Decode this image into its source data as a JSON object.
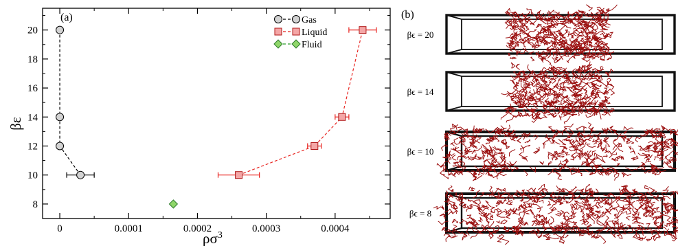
{
  "chart_data": [
    {
      "type": "scatter",
      "panel_label": "(a)",
      "xlabel": "ρσ",
      "xlabel_superscript": "3",
      "ylabel": "βε",
      "xlim": [
        -2.5e-05,
        0.00048
      ],
      "ylim": [
        7,
        21.5
      ],
      "xticks": [
        0,
        0.0001,
        0.0002,
        0.0003,
        0.0004
      ],
      "xtick_labels": [
        "0",
        "0.0001",
        "0.0002",
        "0.0003",
        "0.0004"
      ],
      "yticks": [
        8,
        10,
        12,
        14,
        16,
        18,
        20
      ],
      "ytick_labels": [
        "8",
        "10",
        "12",
        "14",
        "16",
        "18",
        "20"
      ],
      "grid": false,
      "legend_position": "top-right",
      "series": [
        {
          "name": "Gas",
          "marker": "circle",
          "color": "#d3d3d3",
          "line_color": "#000000",
          "points": [
            {
              "x": 0.0,
              "y": 20,
              "xerr": 0
            },
            {
              "x": 0.0,
              "y": 14,
              "xerr": 0
            },
            {
              "x": 0.0,
              "y": 12,
              "xerr": 0
            },
            {
              "x": 3e-05,
              "y": 10,
              "xerr": 2e-05
            }
          ]
        },
        {
          "name": "Liquid",
          "marker": "square",
          "color": "#f4a6a6",
          "line_color": "#e8231f",
          "points": [
            {
              "x": 0.00026,
              "y": 10,
              "xerr": 3e-05
            },
            {
              "x": 0.00037,
              "y": 12,
              "xerr": 1e-05
            },
            {
              "x": 0.00041,
              "y": 14,
              "xerr": 1e-05
            },
            {
              "x": 0.00044,
              "y": 20,
              "xerr": 2e-05
            }
          ]
        },
        {
          "name": "Fluid",
          "marker": "diamond",
          "color": "#8fd66a",
          "line_color": "#2e9e2e",
          "points": [
            {
              "x": 0.000165,
              "y": 8,
              "xerr": 0
            }
          ]
        }
      ]
    }
  ],
  "snapshots": {
    "panel_label": "(b)",
    "strand_color": "#9b1010",
    "items": [
      {
        "label": "βϵ = 20",
        "state": "slab",
        "frame": "thin"
      },
      {
        "label": "βϵ = 14",
        "state": "slab",
        "frame": "thin"
      },
      {
        "label": "βϵ = 10",
        "state": "broken",
        "frame": "bold"
      },
      {
        "label": "βϵ = 8",
        "state": "uniform",
        "frame": "bold"
      }
    ]
  }
}
